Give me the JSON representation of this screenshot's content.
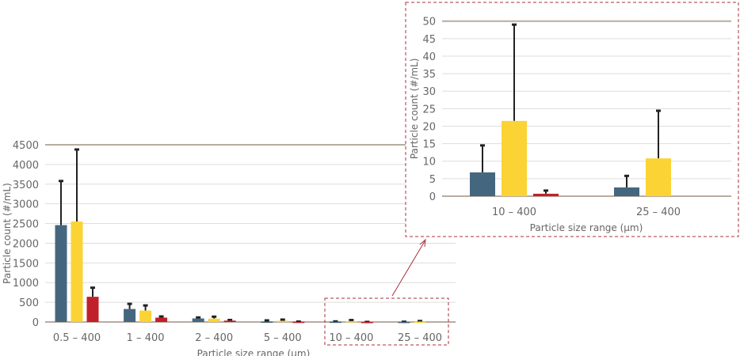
{
  "chart_data": [
    {
      "type": "bar",
      "xlabel": "Particle size range (µm)",
      "ylabel": "Particle count (#/mL)",
      "ylim": [
        0,
        4500
      ],
      "yticks": [
        0,
        500,
        1000,
        1500,
        2000,
        2500,
        3000,
        3500,
        4000,
        4500
      ],
      "grid": true,
      "categories": [
        "0.5 – 400",
        "1 – 400",
        "2 – 400",
        "5 – 400",
        "10 – 400",
        "25 – 400"
      ],
      "series": [
        {
          "color": "#44677f",
          "values": [
            2460,
            330,
            90,
            10,
            6.8,
            2.5
          ],
          "error_upper": [
            3580,
            460,
            115,
            40,
            14.5,
            5.8
          ]
        },
        {
          "color": "#fbd334",
          "values": [
            2550,
            290,
            85,
            30,
            21.5,
            10.8
          ],
          "error_upper": [
            4380,
            420,
            135,
            60,
            49,
            24.4
          ]
        },
        {
          "color": "#c0202a",
          "values": [
            640,
            110,
            35,
            5,
            0.7,
            0
          ],
          "error_upper": [
            870,
            140,
            50,
            10,
            1.6,
            0
          ]
        }
      ]
    },
    {
      "type": "bar",
      "xlabel": "Particle size range (µm)",
      "ylabel": "Particle count (#/mL)",
      "ylim": [
        0,
        50
      ],
      "yticks": [
        0,
        5,
        10,
        15,
        20,
        25,
        30,
        35,
        40,
        45,
        50
      ],
      "grid": true,
      "categories": [
        "10 – 400",
        "25 – 400"
      ],
      "series": [
        {
          "color": "#44677f",
          "values": [
            6.8,
            2.5
          ],
          "error_upper": [
            14.5,
            5.8
          ]
        },
        {
          "color": "#fbd334",
          "values": [
            21.5,
            10.8
          ],
          "error_upper": [
            49,
            24.4
          ]
        },
        {
          "color": "#c0202a",
          "values": [
            0.7,
            0
          ],
          "error_upper": [
            1.6,
            0
          ]
        }
      ]
    }
  ],
  "colors": {
    "axis": "#b8aca0",
    "grid": "#dddddd",
    "callout": "#a8303c"
  }
}
